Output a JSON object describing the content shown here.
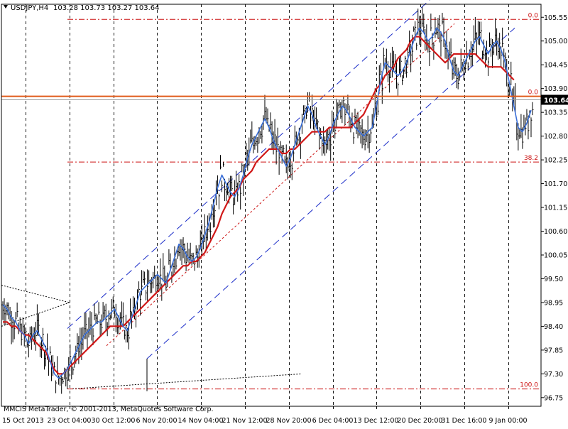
{
  "header": {
    "symbol": "USDJPY,H4",
    "ohlc": "103.28 103.73 103.27 103.64",
    "menu_icon": "triangle-down-icon"
  },
  "footer": {
    "copyright": "MMCIS MetaTrader, © 2001-2013, MetaQuotes Software Corp."
  },
  "colors": {
    "background": "#ffffff",
    "grid": "#000000",
    "price_bars": "#000000",
    "fast_ma": "#3a6fd8",
    "slow_ma": "#d01818",
    "channel": "#1a2cc8",
    "fib": "#cc1111",
    "price_line": "#e05a1a",
    "current_label_bg": "#000000",
    "current_label_text": "#ffffff"
  },
  "chart_data": {
    "type": "line",
    "title": "USDJPY,H4",
    "ylim": [
      96.55,
      105.85
    ],
    "y_ticks": [
      105.55,
      105.0,
      104.45,
      103.9,
      103.35,
      102.8,
      102.25,
      101.7,
      101.15,
      100.6,
      100.05,
      99.5,
      98.95,
      98.4,
      97.85,
      97.3,
      96.75
    ],
    "x_ticks": [
      "15 Oct 2013",
      "23 Oct 04:00",
      "30 Oct 12:00",
      "6 Nov 20:00",
      "14 Nov 04:00",
      "21 Nov 12:00",
      "28 Nov 20:00",
      "6 Dec 04:00",
      "13 Dec 12:00",
      "20 Dec 20:00",
      "31 Dec 16:00",
      "9 Jan 00:00"
    ],
    "current_price": "103.64",
    "current_price_value": 103.64,
    "grid": true,
    "fib_levels": [
      {
        "label": "0.0",
        "value": 105.5
      },
      {
        "label": "0.0",
        "value": 103.72
      },
      {
        "label": "38.2",
        "value": 102.2
      },
      {
        "label": "100.0",
        "value": 96.95
      }
    ],
    "horizontal_line": 103.72,
    "series_fast_ma": [
      98.9,
      98.8,
      98.6,
      98.5,
      98.3,
      98.2,
      98.0,
      98.2,
      98.3,
      98.1,
      97.9,
      97.6,
      97.3,
      97.2,
      97.3,
      97.4,
      97.6,
      97.8,
      98.0,
      98.2,
      98.3,
      98.4,
      98.5,
      98.5,
      98.6,
      98.7,
      98.8,
      98.6,
      98.4,
      98.3,
      98.6,
      98.9,
      99.2,
      99.3,
      99.4,
      99.5,
      99.6,
      99.5,
      99.4,
      99.7,
      100.0,
      100.3,
      100.2,
      100.0,
      99.9,
      100.0,
      100.2,
      100.5,
      100.8,
      101.2,
      101.6,
      101.9,
      101.7,
      101.5,
      101.4,
      101.6,
      101.9,
      102.3,
      102.6,
      102.8,
      103.0,
      103.2,
      103.0,
      102.7,
      102.5,
      102.3,
      102.1,
      102.3,
      102.6,
      102.9,
      103.2,
      103.5,
      103.3,
      103.0,
      102.8,
      102.6,
      102.8,
      103.1,
      103.3,
      103.5,
      103.4,
      103.2,
      103.0,
      102.9,
      102.8,
      102.9,
      103.0,
      103.5,
      104.1,
      104.5,
      104.4,
      104.3,
      104.2,
      104.3,
      104.5,
      104.8,
      105.1,
      105.3,
      105.2,
      105.0,
      105.1,
      105.3,
      105.2,
      105.0,
      104.6,
      104.3,
      104.2,
      104.4,
      104.6,
      104.8,
      105.0,
      105.1,
      104.9,
      104.7,
      104.9,
      105.0,
      104.8,
      104.5,
      104.0,
      103.5,
      103.0,
      102.9,
      103.1,
      103.4
    ],
    "series_slow_ma": [
      98.5,
      98.5,
      98.4,
      98.4,
      98.3,
      98.2,
      98.2,
      98.1,
      98.0,
      97.9,
      97.8,
      97.6,
      97.4,
      97.3,
      97.3,
      97.4,
      97.5,
      97.6,
      97.7,
      97.8,
      97.9,
      98.0,
      98.1,
      98.2,
      98.3,
      98.4,
      98.4,
      98.4,
      98.4,
      98.5,
      98.6,
      98.7,
      98.8,
      98.9,
      99.0,
      99.1,
      99.2,
      99.3,
      99.4,
      99.5,
      99.6,
      99.7,
      99.8,
      99.8,
      99.9,
      99.9,
      100.0,
      100.1,
      100.3,
      100.5,
      100.7,
      101.0,
      101.2,
      101.4,
      101.5,
      101.6,
      101.8,
      101.9,
      102.0,
      102.2,
      102.3,
      102.4,
      102.5,
      102.5,
      102.5,
      102.4,
      102.4,
      102.5,
      102.5,
      102.6,
      102.7,
      102.8,
      102.9,
      102.9,
      102.9,
      102.9,
      103.0,
      103.0,
      103.0,
      103.0,
      103.0,
      103.0,
      103.1,
      103.2,
      103.3,
      103.5,
      103.7,
      103.9,
      104.0,
      104.2,
      104.3,
      104.4,
      104.6,
      104.7,
      104.8,
      105.0,
      105.1,
      105.1,
      105.0,
      104.9,
      104.8,
      104.7,
      104.6,
      104.5,
      104.6,
      104.7,
      104.7,
      104.7,
      104.7,
      104.7,
      104.7,
      104.6,
      104.5,
      104.4,
      104.4,
      104.4,
      104.4,
      104.3,
      104.2,
      104.1
    ]
  }
}
